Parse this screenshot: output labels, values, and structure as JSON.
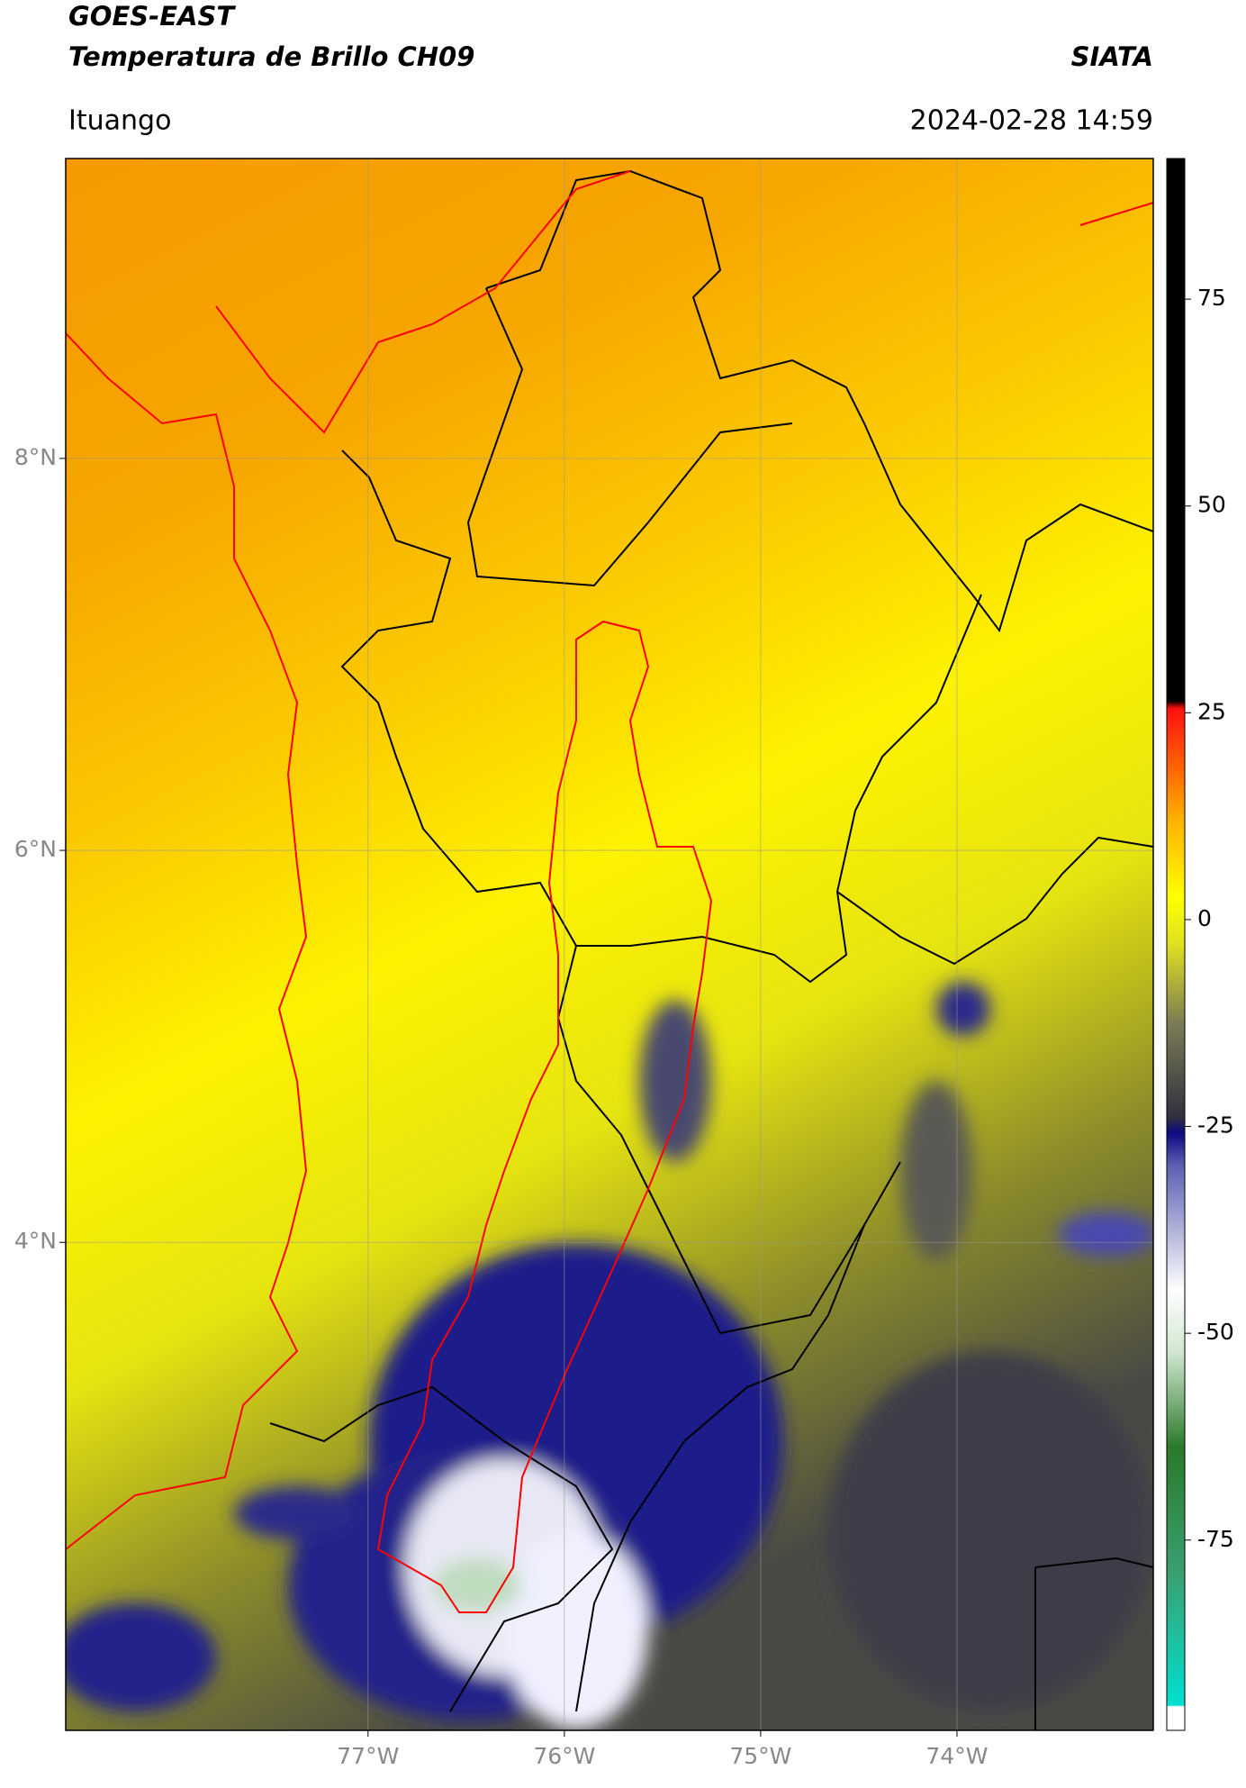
{
  "header": {
    "title": "GOES-EAST",
    "subtitle": "Temperatura de Brillo CH09",
    "brand": "SIATA",
    "region": "Ituango",
    "datetime": "2024-02-28 14:59"
  },
  "map": {
    "xlim": [
      -78.54,
      -73.0
    ],
    "ylim": [
      1.51,
      9.53
    ],
    "xticks": [
      {
        "value": -77,
        "label": "77°W"
      },
      {
        "value": -76,
        "label": "76°W"
      },
      {
        "value": -75,
        "label": "75°W"
      },
      {
        "value": -74,
        "label": "74°W"
      }
    ],
    "yticks": [
      {
        "value": 8,
        "label": "8°N"
      },
      {
        "value": 6,
        "label": "6°N"
      },
      {
        "value": 4,
        "label": "4°N"
      }
    ],
    "grid": true
  },
  "colorbar": {
    "lim": [
      -98,
      92
    ],
    "ticks": [
      75,
      50,
      25,
      0,
      -25,
      -50,
      -75
    ]
  }
}
